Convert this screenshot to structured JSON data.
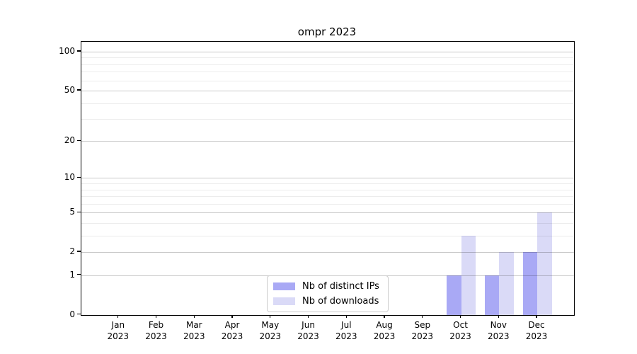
{
  "title": "ompr 2023",
  "x_axis": {
    "months": [
      "Jan",
      "Feb",
      "Mar",
      "Apr",
      "May",
      "Jun",
      "Jul",
      "Aug",
      "Sep",
      "Oct",
      "Nov",
      "Dec"
    ],
    "year": "2023"
  },
  "y_axis": {
    "tick_values": [
      0,
      1,
      2,
      5,
      10,
      20,
      50,
      100
    ]
  },
  "legend": {
    "items": [
      {
        "label": "Nb of distinct IPs",
        "color": "#a9a9f5"
      },
      {
        "label": "Nb of downloads",
        "color": "#dadaf7"
      }
    ]
  },
  "chart_data": {
    "type": "bar",
    "title": "ompr 2023",
    "categories": [
      "Jan 2023",
      "Feb 2023",
      "Mar 2023",
      "Apr 2023",
      "May 2023",
      "Jun 2023",
      "Jul 2023",
      "Aug 2023",
      "Sep 2023",
      "Oct 2023",
      "Nov 2023",
      "Dec 2023"
    ],
    "series": [
      {
        "name": "Nb of distinct IPs",
        "color": "#a9a9f5",
        "values": [
          0,
          0,
          0,
          0,
          0,
          0,
          0,
          0,
          0,
          1,
          1,
          2
        ]
      },
      {
        "name": "Nb of downloads",
        "color": "#dadaf7",
        "values": [
          0,
          0,
          0,
          0,
          0,
          0,
          0,
          0,
          0,
          3,
          2,
          5
        ]
      }
    ],
    "xlabel": "",
    "ylabel": "",
    "yscale": "log1p",
    "ylim": [
      0,
      120
    ],
    "y_major_ticks": [
      0,
      1,
      2,
      5,
      10,
      20,
      50,
      100
    ],
    "y_minor_gridlines": [
      3,
      4,
      6,
      7,
      8,
      9,
      30,
      40,
      60,
      70,
      80,
      90
    ],
    "grid": "horizontal-only",
    "legend_position": "lower center",
    "colors": {
      "axis": "#000000",
      "major_grid": "#c9c9c9",
      "minor_grid": "#ececec",
      "background": "#ffffff"
    }
  }
}
